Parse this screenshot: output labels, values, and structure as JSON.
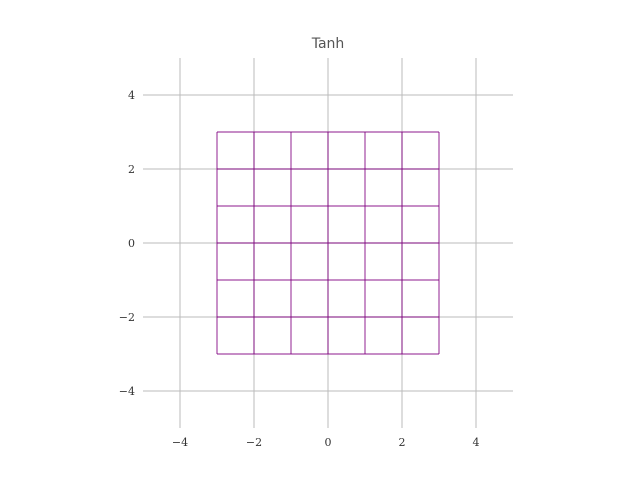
{
  "chart_data": {
    "type": "line",
    "title": "Tanh",
    "xlabel": "",
    "ylabel": "",
    "xlim": [
      -5,
      5
    ],
    "ylim": [
      -5,
      5
    ],
    "xticks": [
      -4,
      -2,
      0,
      2,
      4
    ],
    "yticks": [
      -4,
      -2,
      0,
      2,
      4
    ],
    "xtick_labels": [
      "−4",
      "−2",
      "0",
      "2",
      "4"
    ],
    "ytick_labels": [
      "−4",
      "−2",
      "0",
      "2",
      "4"
    ],
    "grid": true,
    "grid_color": "#bbbbbb",
    "mesh_color": "#800080",
    "mesh": {
      "x_values": [
        -3,
        -2,
        -1,
        0,
        1,
        2,
        3
      ],
      "y_values": [
        -3,
        -2,
        -1,
        0,
        1,
        2,
        3
      ],
      "x_range": [
        -3,
        3
      ],
      "y_range": [
        -3,
        3
      ]
    }
  }
}
